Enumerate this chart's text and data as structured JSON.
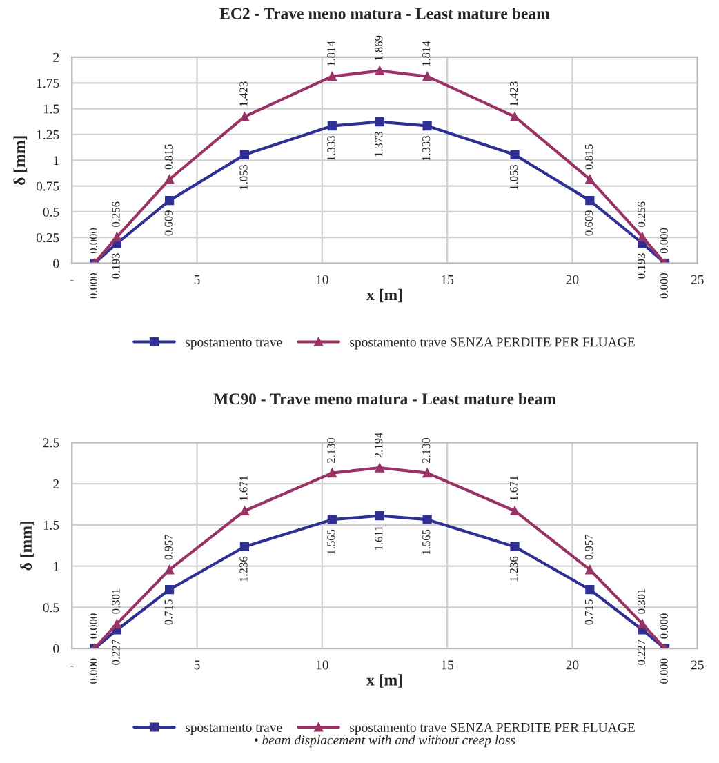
{
  "chart_data": [
    {
      "type": "line",
      "title": "EC2 - Trave meno matura - Least mature beam",
      "xlabel": "x [m]",
      "ylabel": "δ [mm]",
      "x": [
        0.9,
        1.8,
        3.9,
        6.9,
        10.4,
        12.3,
        14.2,
        17.7,
        20.7,
        22.8,
        23.7
      ],
      "series": [
        {
          "name": "spostamento trave",
          "color": "#2e3192",
          "marker": "square",
          "values": [
            0.0,
            0.193,
            0.609,
            1.053,
            1.333,
            1.373,
            1.333,
            1.053,
            0.609,
            0.193,
            0.0
          ],
          "value_labels": [
            "0.000",
            "0.193",
            "0.609",
            "1.053",
            "1.333",
            "1.373",
            "1.333",
            "1.053",
            "0.609",
            "0.193",
            "0.000"
          ]
        },
        {
          "name": "spostamento trave SENZA PERDITE PER FLUAGE",
          "color": "#993366",
          "marker": "triangle",
          "values": [
            0.0,
            0.256,
            0.815,
            1.423,
            1.814,
            1.869,
            1.814,
            1.423,
            0.815,
            0.256,
            0.0
          ],
          "value_labels": [
            "0.000",
            "0.256",
            "0.815",
            "1.423",
            "1.814",
            "1.869",
            "1.814",
            "1.423",
            "0.815",
            "0.256",
            "0.000"
          ]
        }
      ],
      "xlim": [
        0,
        25
      ],
      "xticks": [
        {
          "value": 0,
          "label": "-"
        },
        5,
        10,
        15,
        20,
        25
      ],
      "ylim": [
        0,
        2
      ],
      "yticks": [
        0,
        0.25,
        0.5,
        0.75,
        1,
        1.25,
        1.5,
        1.75,
        2
      ],
      "grid": true,
      "legend": "bottom"
    },
    {
      "type": "line",
      "title": "MC90 - Trave meno matura - Least mature beam",
      "xlabel": "x [m]",
      "ylabel": "δ [mm]",
      "x": [
        0.9,
        1.8,
        3.9,
        6.9,
        10.4,
        12.3,
        14.2,
        17.7,
        20.7,
        22.8,
        23.7
      ],
      "series": [
        {
          "name": "spostamento trave",
          "color": "#2e3192",
          "marker": "square",
          "values": [
            0.0,
            0.227,
            0.715,
            1.236,
            1.565,
            1.611,
            1.565,
            1.236,
            0.715,
            0.227,
            0.0
          ],
          "value_labels": [
            "0.000",
            "0.227",
            "0.715",
            "1.236",
            "1.565",
            "1.611",
            "1.565",
            "1.236",
            "0.715",
            "0.227",
            "0.000"
          ]
        },
        {
          "name": "spostamento trave SENZA PERDITE PER FLUAGE",
          "color": "#993366",
          "marker": "triangle",
          "values": [
            0.0,
            0.301,
            0.957,
            1.671,
            2.13,
            2.194,
            2.13,
            1.671,
            0.957,
            0.301,
            0.0
          ],
          "value_labels": [
            "0.000",
            "0.301",
            "0.957",
            "1.671",
            "2.130",
            "2.194",
            "2.130",
            "1.671",
            "0.957",
            "0.301",
            "0.000"
          ]
        }
      ],
      "xlim": [
        0,
        25
      ],
      "xticks": [
        {
          "value": 0,
          "label": "-"
        },
        5,
        10,
        15,
        20,
        25
      ],
      "ylim": [
        0,
        2.5
      ],
      "yticks": [
        0,
        0.5,
        1,
        1.5,
        2,
        2.5
      ],
      "grid": true,
      "legend": "bottom",
      "annotations": [
        "• beam displacement with and without creep loss"
      ]
    }
  ]
}
